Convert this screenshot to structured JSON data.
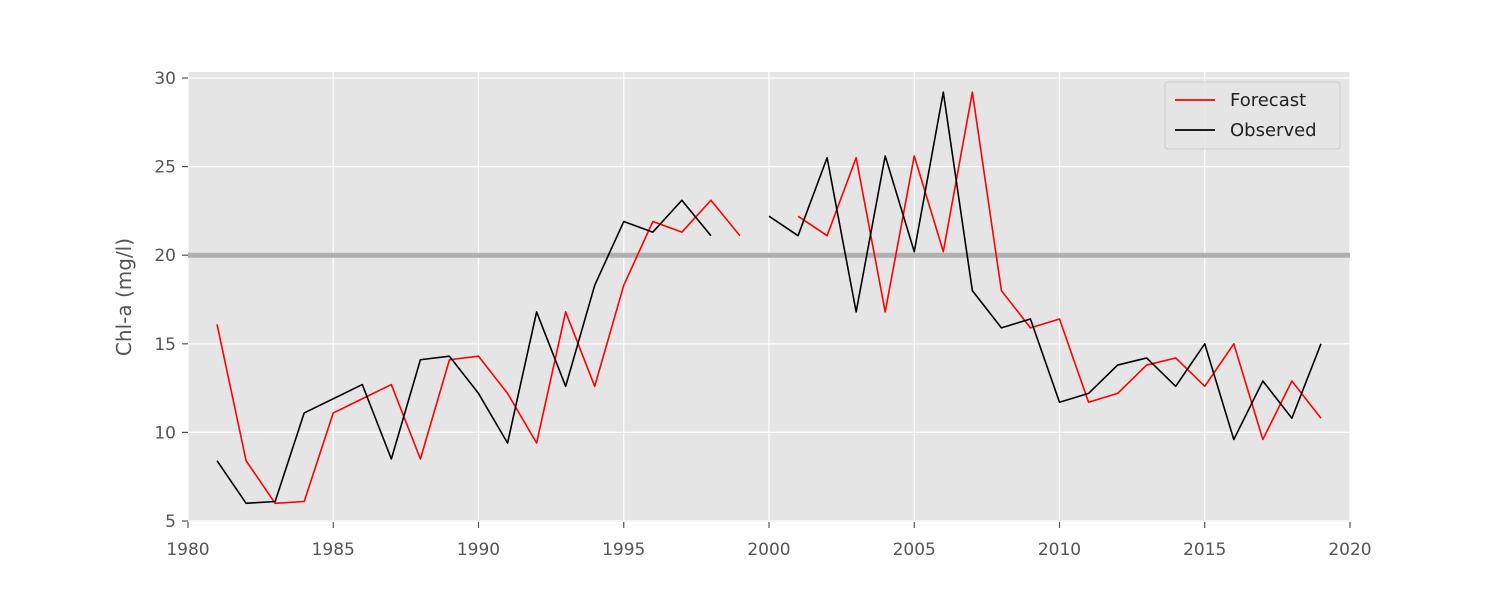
{
  "chart_data": {
    "type": "line",
    "title": "",
    "xlabel": "",
    "ylabel": "Chl-a (mg/l)",
    "xlim": [
      1980,
      2020
    ],
    "ylim": [
      5,
      30
    ],
    "xticks": [
      1980,
      1985,
      1990,
      1995,
      2000,
      2005,
      2010,
      2015,
      2020
    ],
    "yticks": [
      5,
      10,
      15,
      20,
      25,
      30
    ],
    "grid": true,
    "legend_position": "upper right",
    "reference_line": {
      "y": 20,
      "color": "#b0b0b0"
    },
    "series": [
      {
        "name": "Forecast",
        "color": "#ff0000",
        "points": [
          [
            1981,
            16.1
          ],
          [
            1982,
            8.4
          ],
          [
            1983,
            6.0
          ],
          [
            1984,
            6.1
          ],
          [
            1985,
            11.1
          ],
          [
            1986,
            11.9
          ],
          [
            1987,
            12.7
          ],
          [
            1988,
            8.5
          ],
          [
            1989,
            14.1
          ],
          [
            1990,
            14.3
          ],
          [
            1991,
            12.2
          ],
          [
            1992,
            9.4
          ],
          [
            1993,
            16.8
          ],
          [
            1994,
            12.6
          ],
          [
            1995,
            18.3
          ],
          [
            1996,
            21.9
          ],
          [
            1997,
            21.3
          ],
          [
            1998,
            23.1
          ],
          [
            1999,
            21.1
          ],
          [
            2000,
            null
          ],
          [
            2001,
            22.2
          ],
          [
            2002,
            21.1
          ],
          [
            2003,
            25.5
          ],
          [
            2004,
            16.8
          ],
          [
            2005,
            25.6
          ],
          [
            2006,
            20.2
          ],
          [
            2007,
            29.2
          ],
          [
            2008,
            18.0
          ],
          [
            2009,
            15.9
          ],
          [
            2010,
            16.4
          ],
          [
            2011,
            11.7
          ],
          [
            2012,
            12.2
          ],
          [
            2013,
            13.8
          ],
          [
            2014,
            14.2
          ],
          [
            2015,
            12.6
          ],
          [
            2016,
            15.0
          ],
          [
            2017,
            9.6
          ],
          [
            2018,
            12.9
          ],
          [
            2019,
            10.8
          ]
        ]
      },
      {
        "name": "Observed",
        "color": "#000000",
        "points": [
          [
            1981,
            8.4
          ],
          [
            1982,
            6.0
          ],
          [
            1983,
            6.1
          ],
          [
            1984,
            11.1
          ],
          [
            1985,
            11.9
          ],
          [
            1986,
            12.7
          ],
          [
            1987,
            8.5
          ],
          [
            1988,
            14.1
          ],
          [
            1989,
            14.3
          ],
          [
            1990,
            12.2
          ],
          [
            1991,
            9.4
          ],
          [
            1992,
            16.8
          ],
          [
            1993,
            12.6
          ],
          [
            1994,
            18.3
          ],
          [
            1995,
            21.9
          ],
          [
            1996,
            21.3
          ],
          [
            1997,
            23.1
          ],
          [
            1998,
            21.1
          ],
          [
            1999,
            null
          ],
          [
            2000,
            22.2
          ],
          [
            2001,
            21.1
          ],
          [
            2002,
            25.5
          ],
          [
            2003,
            16.8
          ],
          [
            2004,
            25.6
          ],
          [
            2005,
            20.2
          ],
          [
            2006,
            29.2
          ],
          [
            2007,
            18.0
          ],
          [
            2008,
            15.9
          ],
          [
            2009,
            16.4
          ],
          [
            2010,
            11.7
          ],
          [
            2011,
            12.2
          ],
          [
            2012,
            13.8
          ],
          [
            2013,
            14.2
          ],
          [
            2014,
            12.6
          ],
          [
            2015,
            15.0
          ],
          [
            2016,
            9.6
          ],
          [
            2017,
            12.9
          ],
          [
            2018,
            10.8
          ],
          [
            2019,
            15.0
          ]
        ]
      }
    ]
  }
}
